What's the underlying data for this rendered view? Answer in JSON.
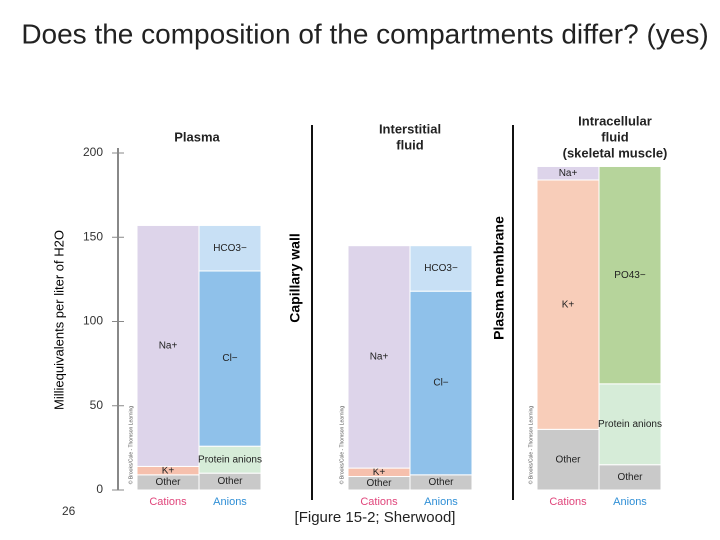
{
  "title": "Does the composition of the compartments differ? (yes)",
  "page_number": "26",
  "caption": "[Figure 15-2; Sherwood]",
  "dividers": [
    "Capillary wall",
    "Plasma membrane"
  ],
  "chart_data": [
    {
      "type": "bar",
      "stacked": true,
      "title": [
        "Plasma"
      ],
      "y_label": "Milliequivalents per liter of H2O",
      "credit": "© Brooks/Cole - Thomson Learning",
      "categories": [
        "Cations",
        "Anions"
      ],
      "ylim": [
        0,
        200
      ],
      "yticks": [
        0,
        50,
        100,
        150,
        200
      ],
      "series": [
        {
          "name": "Other",
          "color": "#c9c9c9",
          "values": [
            9,
            10
          ]
        },
        {
          "name": "K+",
          "color": "#f6c0ad",
          "values": [
            5,
            null
          ]
        },
        {
          "name": "Na+",
          "color": "#ddd4ea",
          "values": [
            143,
            null
          ]
        },
        {
          "name": "Protein anions",
          "color": "#d6ecd8",
          "values": [
            null,
            16
          ]
        },
        {
          "name": "Cl−",
          "color": "#8fc1ea",
          "values": [
            null,
            104
          ]
        },
        {
          "name": "HCO3−",
          "color": "#c8e0f5",
          "values": [
            null,
            27
          ]
        }
      ]
    },
    {
      "type": "bar",
      "stacked": true,
      "title": [
        "Interstitial",
        "fluid"
      ],
      "credit": "© Brooks/Cole - Thomson Learning",
      "categories": [
        "Cations",
        "Anions"
      ],
      "ylim": [
        0,
        200
      ],
      "series": [
        {
          "name": "Other",
          "color": "#c9c9c9",
          "values": [
            8,
            9
          ]
        },
        {
          "name": "K+",
          "color": "#f6c0ad",
          "values": [
            5,
            null
          ]
        },
        {
          "name": "Na+",
          "color": "#ddd4ea",
          "values": [
            132,
            null
          ]
        },
        {
          "name": "Cl−",
          "color": "#8fc1ea",
          "values": [
            null,
            109
          ]
        },
        {
          "name": "HCO3−",
          "color": "#c8e0f5",
          "values": [
            null,
            27
          ]
        }
      ]
    },
    {
      "type": "bar",
      "stacked": true,
      "title": [
        "Intracellular",
        "fluid",
        "(skeletal muscle)"
      ],
      "credit": "© Brooks/Cole - Thomson Learning",
      "categories": [
        "Cations",
        "Anions"
      ],
      "ylim": [
        0,
        200
      ],
      "series": [
        {
          "name": "Other",
          "color": "#c9c9c9",
          "values": [
            36,
            15
          ]
        },
        {
          "name": "K+",
          "color": "#f8cdb9",
          "values": [
            148,
            null
          ]
        },
        {
          "name": "Na+",
          "color": "#ddd4ea",
          "values": [
            8,
            null
          ]
        },
        {
          "name": "Protein anions",
          "color": "#d6ecd8",
          "values": [
            null,
            48
          ]
        },
        {
          "name": "PO43−",
          "color": "#b6d49b",
          "values": [
            null,
            129
          ]
        }
      ]
    }
  ]
}
